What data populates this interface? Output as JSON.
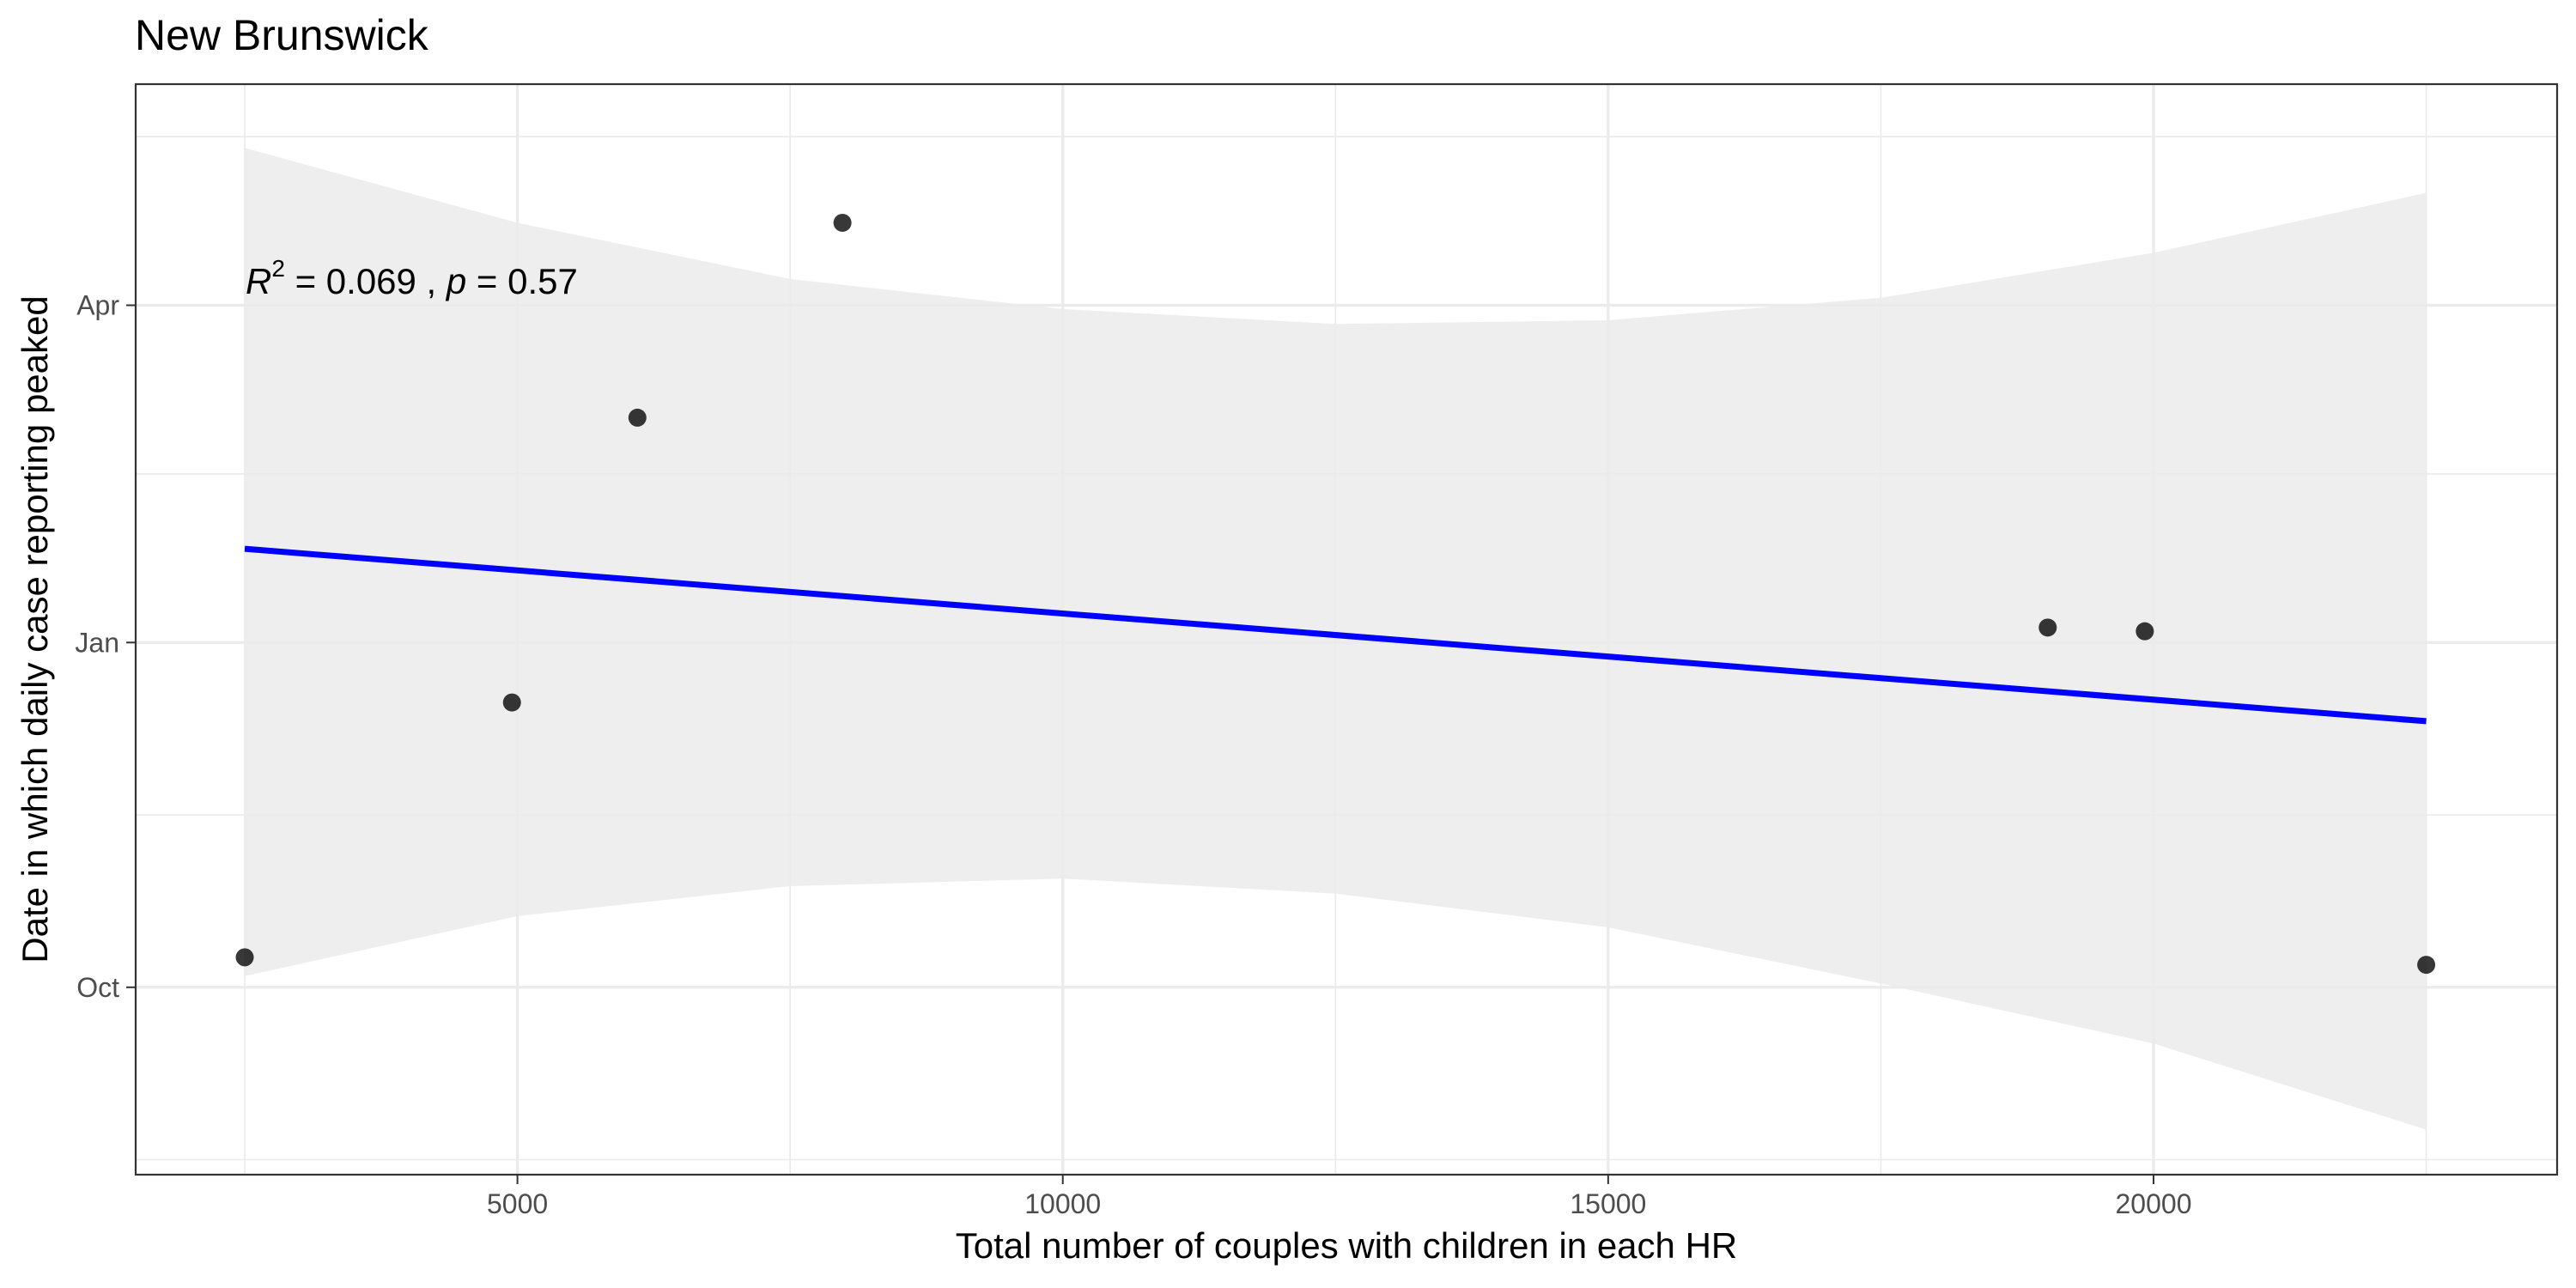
{
  "chart_data": {
    "type": "scatter",
    "title": "New Brunswick",
    "xlabel": "Total number of couples with children in each HR",
    "ylabel": "Date in which daily case reporting peaked",
    "xlim": [
      1500,
      23700
    ],
    "ylim": [
      "2020-08-12",
      "2021-05-30"
    ],
    "x_ticks": [
      {
        "value": 5000,
        "label": "5000"
      },
      {
        "value": 10000,
        "label": "10000"
      },
      {
        "value": 15000,
        "label": "15000"
      },
      {
        "value": 20000,
        "label": "20000"
      }
    ],
    "y_ticks": [
      {
        "value": "2020-10-01",
        "label": "Oct"
      },
      {
        "value": "2021-01-01",
        "label": "Jan"
      },
      {
        "value": "2021-04-01",
        "label": "Apr"
      }
    ],
    "points": [
      {
        "x": 2500,
        "y": "2020-10-09"
      },
      {
        "x": 4950,
        "y": "2020-12-16"
      },
      {
        "x": 6100,
        "y": "2021-03-02"
      },
      {
        "x": 7980,
        "y": "2021-04-23"
      },
      {
        "x": 19030,
        "y": "2021-01-05"
      },
      {
        "x": 19920,
        "y": "2021-01-04"
      },
      {
        "x": 22500,
        "y": "2020-10-07"
      }
    ],
    "fit_line": {
      "color": "#0000ff",
      "from": {
        "x": 2500,
        "y": "2021-01-26"
      },
      "to": {
        "x": 22500,
        "y": "2020-12-11"
      }
    },
    "confidence_band": {
      "color": "#ebebeb",
      "x": [
        2500,
        5000,
        7500,
        10000,
        12500,
        15000,
        17500,
        20000,
        22500
      ],
      "upper": [
        "2021-05-13",
        "2021-04-23",
        "2021-04-08",
        "2021-03-31",
        "2021-03-27",
        "2021-03-28",
        "2021-04-03",
        "2021-04-15",
        "2021-05-01"
      ],
      "lower": [
        "2020-10-04",
        "2020-10-20",
        "2020-10-28",
        "2020-10-30",
        "2020-10-26",
        "2020-10-17",
        "2020-10-02",
        "2020-09-16",
        "2020-08-24"
      ]
    },
    "annotation": {
      "r2_symbol": "R",
      "r2_sup": "2",
      "r2_value": " = 0.069 , ",
      "p_symbol": "p",
      "p_value": " = 0.57"
    },
    "grid": true,
    "legend": "none"
  }
}
